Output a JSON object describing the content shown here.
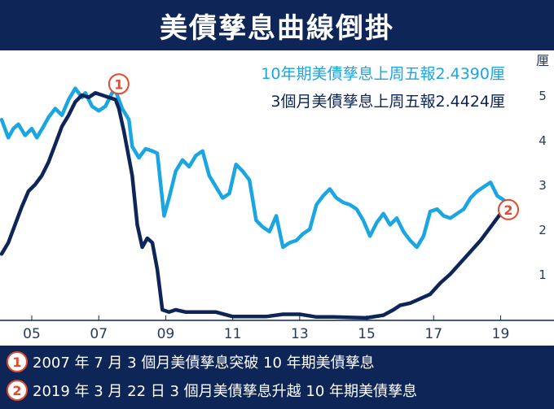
{
  "title": "美債孳息曲線倒掛",
  "legend": {
    "ten_year": "10年期美債孳息上周五報2.4390厘",
    "three_month": "3個月美債孳息上周五報2.4424厘"
  },
  "notes": [
    {
      "badge": "1",
      "text": "2007 年 7 月 3 個月美債孳息突破 10 年期美債孳息"
    },
    {
      "badge": "2",
      "text": "2019 年 3 月 22 日 3 個月美債孳息升越 10 年期美債孳息"
    }
  ],
  "colors": {
    "header_bg": "#0e2558",
    "ten_year": "#1aa6e0",
    "three_month": "#0e2558",
    "marker": "#e2492f"
  },
  "chart_data": {
    "type": "line",
    "title": "美債孳息曲線倒掛",
    "ylabel": "厘",
    "ylim": [
      0,
      5.6
    ],
    "xlim": [
      2004.1,
      2019.5
    ],
    "yticks": [
      "1",
      "2",
      "3",
      "4",
      "5"
    ],
    "xticks": [
      "05",
      "07",
      "09",
      "11",
      "13",
      "15",
      "17",
      "19"
    ],
    "xtick_years": [
      2005,
      2007,
      2009,
      2011,
      2013,
      2015,
      2017,
      2019
    ],
    "grid": false,
    "legend_placement": "top-right",
    "series": [
      {
        "name": "10年期美債孳息上周五報2.4390厘",
        "x": [
          2004.1,
          2004.3,
          2004.45,
          2004.6,
          2004.8,
          2005.0,
          2005.15,
          2005.35,
          2005.5,
          2005.7,
          2005.9,
          2006.1,
          2006.3,
          2006.5,
          2006.6,
          2006.8,
          2007.0,
          2007.2,
          2007.4,
          2007.5,
          2007.7,
          2007.9,
          2008.0,
          2008.2,
          2008.4,
          2008.6,
          2008.75,
          2008.95,
          2009.1,
          2009.3,
          2009.5,
          2009.7,
          2009.9,
          2010.1,
          2010.3,
          2010.5,
          2010.7,
          2010.9,
          2011.1,
          2011.3,
          2011.5,
          2011.7,
          2011.9,
          2012.1,
          2012.3,
          2012.5,
          2012.7,
          2012.9,
          2013.1,
          2013.3,
          2013.5,
          2013.7,
          2013.9,
          2014.1,
          2014.3,
          2014.5,
          2014.7,
          2014.9,
          2015.1,
          2015.3,
          2015.5,
          2015.7,
          2015.9,
          2016.1,
          2016.3,
          2016.5,
          2016.7,
          2016.9,
          2017.1,
          2017.3,
          2017.5,
          2017.7,
          2017.9,
          2018.1,
          2018.3,
          2018.5,
          2018.7,
          2018.9,
          2019.1,
          2019.25
        ],
        "values": [
          4.45,
          4.05,
          4.25,
          4.35,
          4.1,
          4.25,
          4.05,
          4.3,
          4.5,
          4.7,
          4.55,
          4.9,
          5.15,
          4.95,
          5.05,
          4.75,
          4.65,
          4.75,
          5.05,
          5.1,
          4.7,
          4.45,
          3.85,
          3.6,
          3.8,
          3.75,
          3.7,
          2.3,
          2.7,
          3.3,
          3.55,
          3.4,
          3.65,
          3.75,
          3.2,
          2.95,
          2.7,
          2.8,
          3.45,
          3.3,
          3.1,
          2.2,
          2.05,
          1.95,
          2.3,
          1.6,
          1.7,
          1.75,
          1.9,
          2.0,
          2.55,
          2.75,
          2.9,
          2.7,
          2.6,
          2.55,
          2.45,
          2.2,
          1.85,
          2.15,
          2.35,
          2.1,
          2.25,
          1.95,
          1.75,
          1.6,
          1.85,
          2.4,
          2.45,
          2.3,
          2.25,
          2.35,
          2.45,
          2.7,
          2.85,
          2.95,
          3.05,
          2.75,
          2.65,
          2.44
        ]
      },
      {
        "name": "3個月美債孳息上周五報2.4424厘",
        "x": [
          2004.1,
          2004.3,
          2004.5,
          2004.7,
          2004.9,
          2005.1,
          2005.3,
          2005.5,
          2005.7,
          2005.9,
          2006.1,
          2006.3,
          2006.5,
          2006.7,
          2006.9,
          2007.1,
          2007.3,
          2007.5,
          2007.6,
          2007.75,
          2007.9,
          2008.0,
          2008.15,
          2008.3,
          2008.45,
          2008.6,
          2008.75,
          2008.9,
          2009.1,
          2009.3,
          2009.6,
          2010.0,
          2010.5,
          2011.0,
          2011.5,
          2012.0,
          2012.5,
          2013.0,
          2013.5,
          2014.0,
          2014.5,
          2015.0,
          2015.5,
          2015.8,
          2016.0,
          2016.3,
          2016.6,
          2016.9,
          2017.2,
          2017.5,
          2017.8,
          2018.1,
          2018.4,
          2018.7,
          2019.0,
          2019.25
        ],
        "values": [
          1.45,
          1.7,
          2.1,
          2.5,
          2.85,
          3.0,
          3.2,
          3.5,
          3.9,
          4.3,
          4.55,
          4.85,
          5.0,
          4.95,
          5.05,
          5.0,
          4.95,
          4.9,
          4.7,
          4.2,
          3.6,
          3.2,
          2.1,
          1.6,
          1.8,
          1.7,
          1.1,
          0.2,
          0.15,
          0.2,
          0.15,
          0.15,
          0.15,
          0.05,
          0.05,
          0.05,
          0.1,
          0.1,
          0.04,
          0.04,
          0.03,
          0.02,
          0.08,
          0.2,
          0.3,
          0.35,
          0.45,
          0.55,
          0.8,
          1.0,
          1.25,
          1.5,
          1.75,
          2.05,
          2.35,
          2.44
        ]
      }
    ],
    "annotations": [
      {
        "label": "1",
        "x": 2007.6,
        "y": 5.25
      },
      {
        "label": "2",
        "x": 2019.4,
        "y": 2.44
      }
    ]
  }
}
